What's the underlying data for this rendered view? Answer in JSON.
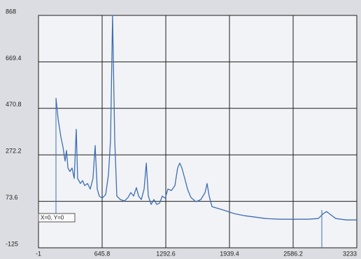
{
  "chart_data": {
    "type": "line",
    "annotation": "X=0, Y=0",
    "x": [
      177,
      199,
      226,
      248,
      269,
      283,
      298,
      319,
      340,
      362,
      383,
      397,
      425,
      447,
      468,
      497,
      525,
      553,
      575,
      596,
      617,
      646,
      681,
      710,
      731,
      752,
      774,
      795,
      831,
      873,
      909,
      937,
      966,
      994,
      1016,
      1044,
      1072,
      1094,
      1115,
      1143,
      1172,
      1200,
      1229,
      1257,
      1286,
      1314,
      1350,
      1385,
      1413,
      1435,
      1456,
      1485,
      1513,
      1548,
      1598,
      1648,
      1691,
      1712,
      1733,
      1762,
      1811,
      1882,
      1989,
      2095,
      2202,
      2309,
      2451,
      2593,
      2736,
      2842,
      2892,
      2927,
      2963,
      3020,
      3126,
      3233
    ],
    "values": [
      515,
      425,
      351,
      306,
      246,
      291,
      216,
      201,
      216,
      171,
      381,
      171,
      150,
      162,
      141,
      150,
      126,
      171,
      312,
      126,
      96,
      87,
      102,
      186,
      336,
      868,
      336,
      96,
      81,
      75,
      90,
      111,
      96,
      132,
      96,
      81,
      126,
      237,
      96,
      60,
      81,
      60,
      66,
      96,
      87,
      126,
      120,
      141,
      216,
      237,
      216,
      171,
      126,
      90,
      72,
      81,
      111,
      150,
      96,
      51,
      45,
      36,
      21,
      12,
      6,
      0,
      -3,
      -3,
      -3,
      0,
      21,
      30,
      18,
      0,
      -6,
      -6
    ],
    "color": "#3d6eb4",
    "xlim": [
      -1,
      3233
    ],
    "xticks": [
      -1,
      645.8,
      1292.6,
      1939.4,
      2586.2,
      3233
    ],
    "ylim": [
      -125,
      868
    ],
    "yticks": [
      -125,
      73.6,
      272.2,
      470.8,
      669.4,
      868
    ],
    "grid": true
  }
}
